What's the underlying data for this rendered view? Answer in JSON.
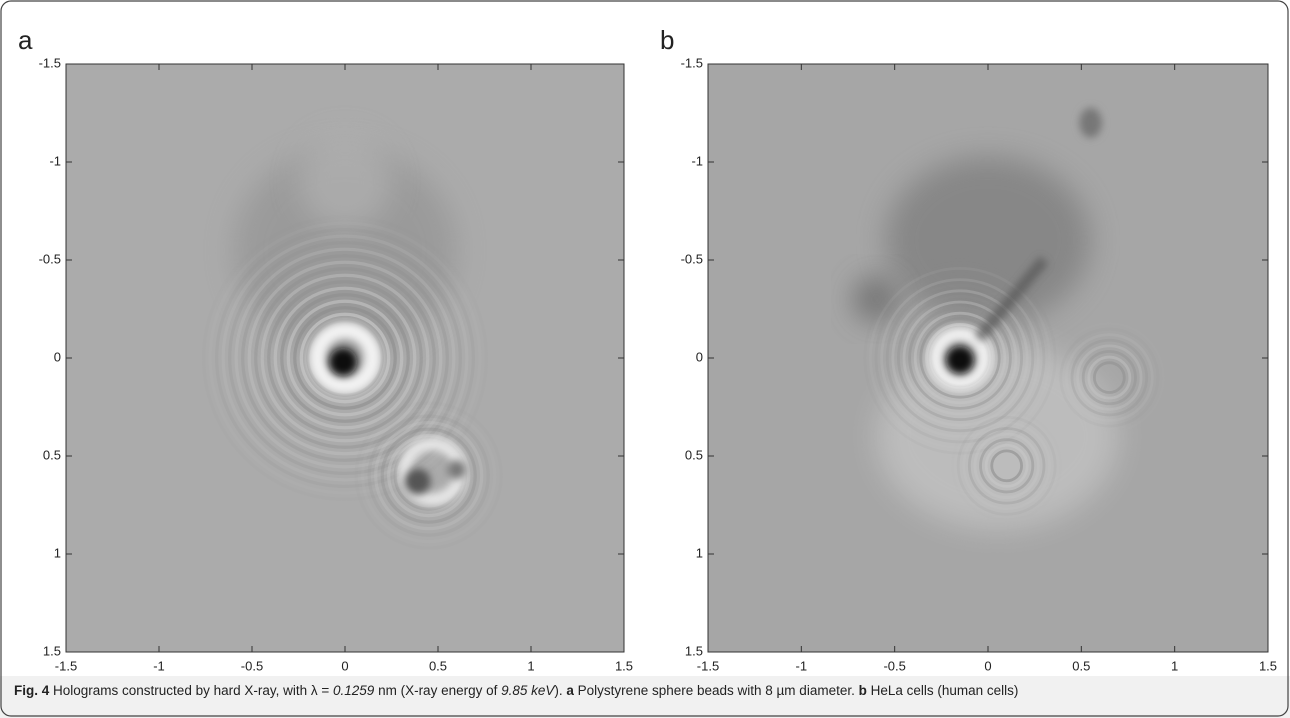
{
  "chart_data": [
    {
      "type": "image",
      "panel_label": "a",
      "xlim": [
        -1.5,
        1.5
      ],
      "ylim": [
        1.5,
        -1.5
      ],
      "xticks": [
        -1.5,
        -1,
        -0.5,
        0,
        0.5,
        1,
        1.5
      ],
      "yticks": [
        -1.5,
        -1,
        -0.5,
        0,
        0.5,
        1,
        1.5
      ]
    },
    {
      "type": "image",
      "panel_label": "b",
      "xlim": [
        -1.5,
        1.5
      ],
      "ylim": [
        1.5,
        -1.5
      ],
      "xticks": [
        -1.5,
        -1,
        -0.5,
        0,
        0.5,
        1,
        1.5
      ],
      "yticks": [
        -1.5,
        -1,
        -0.5,
        0,
        0.5,
        1,
        1.5
      ]
    }
  ],
  "caption": [
    {
      "text": "Fig. 4",
      "style": "bold"
    },
    {
      "text": " Holograms constructed by hard X-ray, with λ = ",
      "style": "normal"
    },
    {
      "text": "0.1259",
      "style": "italic"
    },
    {
      "text": " nm (X-ray energy of ",
      "style": "normal"
    },
    {
      "text": "9.85 keV",
      "style": "italic"
    },
    {
      "text": "). ",
      "style": "normal"
    },
    {
      "text": "a",
      "style": "bold"
    },
    {
      "text": " Polystyrene sphere beads with 8 µm diameter. ",
      "style": "normal"
    },
    {
      "text": "b",
      "style": "bold"
    },
    {
      "text": " HeLa cells (human cells)",
      "style": "normal"
    }
  ]
}
